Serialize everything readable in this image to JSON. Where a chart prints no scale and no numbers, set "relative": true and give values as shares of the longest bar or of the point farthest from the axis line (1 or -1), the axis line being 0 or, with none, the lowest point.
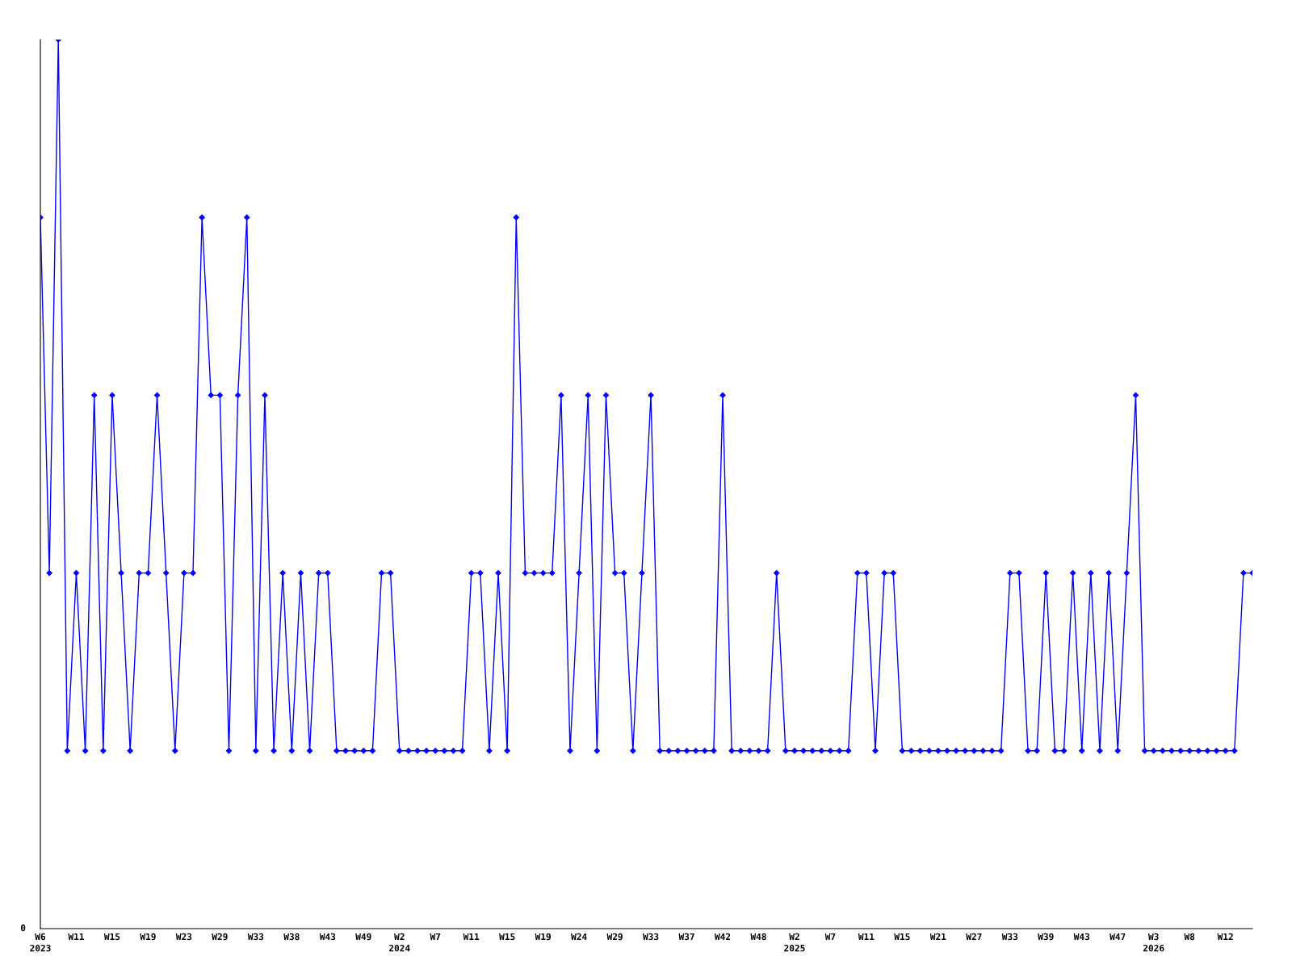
{
  "chart_data": {
    "type": "line",
    "relative": true,
    "marker": "diamond",
    "line_style": "solid",
    "grid": false,
    "legend": false,
    "categories": [
      "W6\n2023",
      null,
      null,
      null,
      "W11",
      null,
      null,
      null,
      "W15",
      null,
      null,
      null,
      "W19",
      null,
      null,
      null,
      "W23",
      null,
      null,
      null,
      "W29",
      null,
      null,
      null,
      "W33",
      null,
      null,
      null,
      "W38",
      null,
      null,
      null,
      "W43",
      null,
      null,
      null,
      "W49",
      null,
      null,
      null,
      "W2\n2024",
      null,
      null,
      null,
      "W7",
      null,
      null,
      null,
      "W11",
      null,
      null,
      null,
      "W15",
      null,
      null,
      null,
      "W19",
      null,
      null,
      null,
      "W24",
      null,
      null,
      null,
      "W29",
      null,
      null,
      null,
      "W33",
      null,
      null,
      null,
      "W37",
      null,
      null,
      null,
      "W42",
      null,
      null,
      null,
      "W48",
      null,
      null,
      null,
      "W2\n2025",
      null,
      null,
      null,
      "W7",
      null,
      null,
      null,
      "W11",
      null,
      null,
      null,
      "W15",
      null,
      null,
      null,
      "W21",
      null,
      null,
      null,
      "W27",
      null,
      null,
      null,
      "W33",
      null,
      null,
      null,
      "W39",
      null,
      null,
      null,
      "W43",
      null,
      null,
      null,
      "W47",
      null,
      null,
      null,
      "W3\n2026",
      null,
      null,
      null,
      "W8",
      null,
      null,
      null,
      "W12",
      null,
      null,
      null
    ],
    "series": [
      {
        "color": "#0000ff",
        "values": [
          0.8,
          0.4,
          1,
          0.2,
          0.4,
          0.2,
          0.6,
          0.2,
          0.6,
          0.4,
          0.2,
          0.4,
          0.4,
          0.6,
          0.4,
          0.2,
          0.4,
          0.4,
          0.8,
          0.6,
          0.6,
          0.2,
          0.6,
          0.8,
          0.2,
          0.6,
          0.2,
          0.4,
          0.2,
          0.4,
          0.2,
          0.4,
          0.4,
          0.2,
          0.2,
          0.2,
          0.2,
          0.2,
          0.4,
          0.4,
          0.2,
          0.2,
          0.2,
          0.2,
          0.2,
          0.2,
          0.2,
          0.2,
          0.4,
          0.4,
          0.2,
          0.4,
          0.2,
          0.8,
          0.4,
          0.4,
          0.4,
          0.4,
          0.6,
          0.2,
          0.4,
          0.6,
          0.2,
          0.6,
          0.4,
          0.4,
          0.2,
          0.4,
          0.6,
          0.2,
          0.2,
          0.2,
          0.2,
          0.2,
          0.2,
          0.2,
          0.6,
          0.2,
          0.2,
          0.2,
          0.2,
          0.2,
          0.4,
          0.2,
          0.2,
          0.2,
          0.2,
          0.2,
          0.2,
          0.2,
          0.2,
          0.4,
          0.4,
          0.2,
          0.4,
          0.4,
          0.2,
          0.2,
          0.2,
          0.2,
          0.2,
          0.2,
          0.2,
          0.2,
          0.2,
          0.2,
          0.2,
          0.2,
          0.4,
          0.4,
          0.2,
          0.2,
          0.4,
          0.2,
          0.2,
          0.4,
          0.2,
          0.4,
          0.2,
          0.4,
          0.2,
          0.4,
          0.6,
          0.2,
          0.2,
          0.2,
          0.2,
          0.2,
          0.2,
          0.2,
          0.2,
          0.2,
          0.2,
          0.2,
          0.4,
          0.4
        ]
      }
    ],
    "annotations": [
      "0"
    ]
  }
}
